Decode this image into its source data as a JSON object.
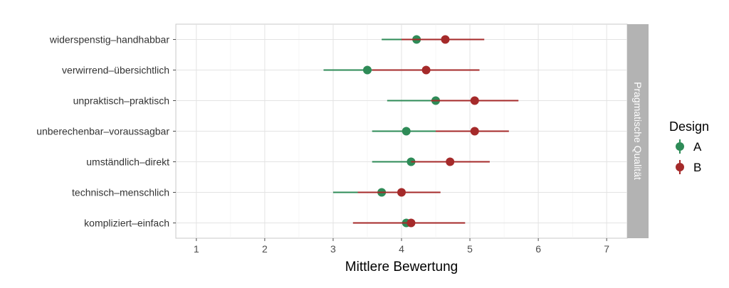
{
  "chart_data": {
    "type": "dot-range",
    "title": "",
    "xlabel": "Mittlere Bewertung",
    "ylabel": "",
    "xlim": [
      0.7,
      7.3
    ],
    "xticks": [
      1,
      2,
      3,
      4,
      5,
      6,
      7
    ],
    "x_tick_labels": [
      "1",
      "2",
      "3",
      "4",
      "5",
      "6",
      "7"
    ],
    "categories": [
      "widerspenstig–handhabbar",
      "verwirrend–übersichtlich",
      "unpraktisch–praktisch",
      "unberechenbar–voraussagbar",
      "umständlich–direkt",
      "technisch–menschlich",
      "kompliziert–einfach"
    ],
    "facet_label": "Pragmatische Qualität",
    "legend": {
      "title": "Design",
      "position": "right"
    },
    "grid": true,
    "series": [
      {
        "name": "A",
        "color": "#2e8b57",
        "values": [
          4.22,
          3.5,
          4.5,
          4.07,
          4.14,
          3.71,
          4.07
        ],
        "lower": [
          3.71,
          2.86,
          3.79,
          3.57,
          3.57,
          3.0,
          3.86
        ],
        "upper": [
          4.71,
          4.14,
          5.21,
          4.57,
          4.71,
          4.36,
          4.36
        ]
      },
      {
        "name": "B",
        "color": "#a52a2a",
        "values": [
          4.64,
          4.36,
          5.07,
          5.07,
          4.71,
          4.0,
          4.14
        ],
        "lower": [
          4.0,
          3.57,
          4.43,
          4.5,
          4.14,
          3.36,
          3.29
        ],
        "upper": [
          5.21,
          5.14,
          5.71,
          5.57,
          5.29,
          4.57,
          4.93
        ]
      }
    ]
  }
}
